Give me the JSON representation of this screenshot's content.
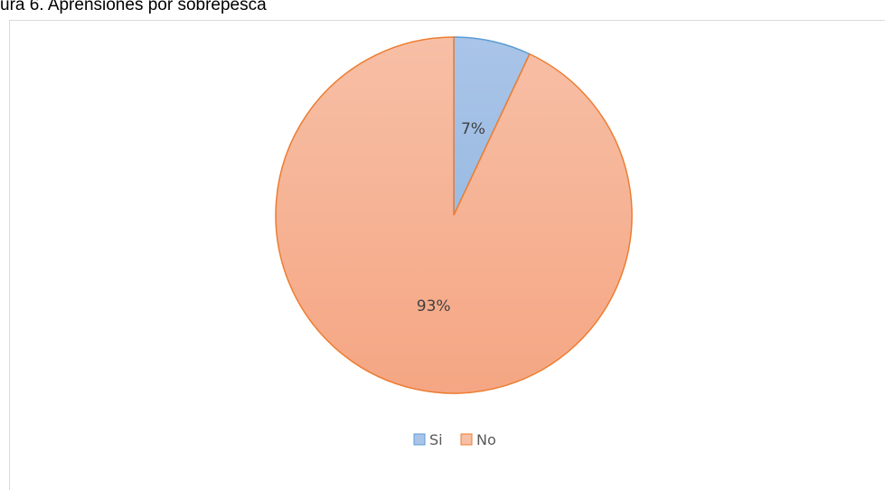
{
  "caption": "ura 6. Aprensiones por sobrepesca",
  "chart_data": {
    "type": "pie",
    "categories": [
      "Si",
      "No"
    ],
    "values": [
      7,
      93
    ],
    "labels": [
      "7%",
      "93%"
    ],
    "legend_position": "bottom",
    "colors": {
      "Si": {
        "fill_top": "#a9c4e8",
        "fill_bottom": "#9bbbe2",
        "stroke": "#5b9bd5"
      },
      "No": {
        "fill_top": "#f7bfa6",
        "fill_bottom": "#f5a683",
        "stroke": "#ed7d31"
      }
    }
  }
}
